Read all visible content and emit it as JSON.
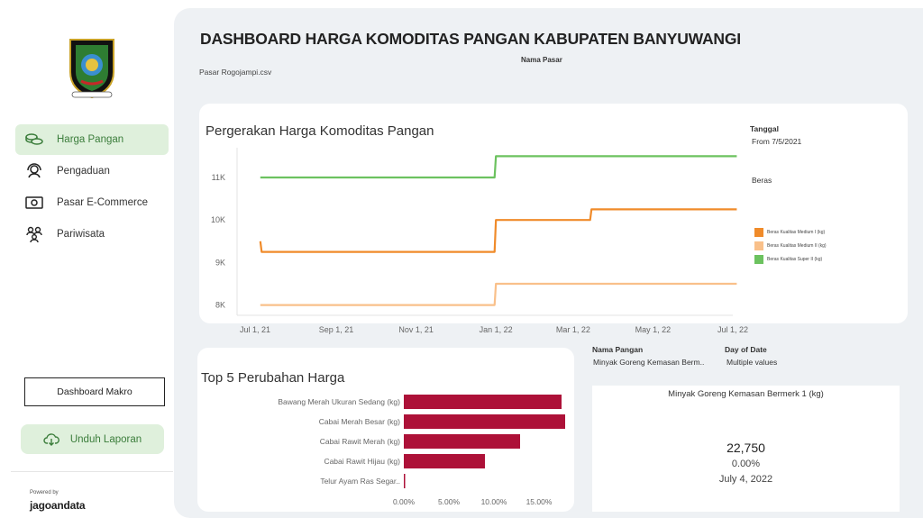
{
  "sidebar": {
    "logo_icon": "banyuwangi-crest-icon",
    "items": [
      {
        "label": "Harga Pangan",
        "icon": "coins-icon",
        "active": true
      },
      {
        "label": "Pengaduan",
        "icon": "support-agent-icon",
        "active": false
      },
      {
        "label": "Pasar E-Commerce",
        "icon": "cash-icon",
        "active": false
      },
      {
        "label": "Pariwisata",
        "icon": "people-group-icon",
        "active": false
      }
    ],
    "makro_label": "Dashboard Makro",
    "unduh_label": "Unduh Laporan",
    "powered_by": "Powered by",
    "brand": "jagoandata"
  },
  "header": {
    "title": "DASHBOARD HARGA KOMODITAS PANGAN KABUPATEN BANYUWANGI",
    "nama_pasar_label": "Nama Pasar",
    "pasar_value": "Pasar Rogojampi.csv"
  },
  "line_panel": {
    "title": "Pergerakan Harga Komoditas Pangan",
    "tanggal_label": "Tanggal",
    "tanggal_value": "From 7/5/2021",
    "commodity_filter": "Beras"
  },
  "bar_panel": {
    "title": "Top 5 Perubahan Harga"
  },
  "filters": {
    "nama_pangan_label": "Nama Pangan",
    "nama_pangan_value": "Minyak Goreng Kemasan Berm..",
    "day_label": "Day of Date",
    "day_value": "Multiple values"
  },
  "kpi": {
    "title": "Minyak Goreng Kemasan Bermerk 1 (kg)",
    "value": "22,750",
    "change": "0.00%",
    "date": "July 4, 2022"
  },
  "colors": {
    "green": "#6cc25f",
    "orange": "#f08b2a",
    "light_orange": "#f9c08a",
    "bar": "#ad1138",
    "nav_active_bg": "#dff0dc"
  },
  "chart_data": [
    {
      "type": "line",
      "title": "Pergerakan Harga Komoditas Pangan",
      "x_ticks": [
        "Jul 1, 21",
        "Sep 1, 21",
        "Nov 1, 21",
        "Jan 1, 22",
        "Mar 1, 22",
        "May 1, 22",
        "Jul 1, 22"
      ],
      "y_ticks": [
        "8K",
        "9K",
        "10K",
        "11K"
      ],
      "ylim": [
        7800,
        11700
      ],
      "xlim": [
        "2021-07-01",
        "2022-07-01"
      ],
      "series": [
        {
          "name": "Beras Kualitas Medium I (kg)",
          "color": "#f08b2a",
          "points": [
            [
              "2021-07-05",
              9500
            ],
            [
              "2021-07-06",
              9250
            ],
            [
              "2021-12-31",
              9250
            ],
            [
              "2022-01-01",
              10000
            ],
            [
              "2022-03-14",
              10000
            ],
            [
              "2022-03-15",
              10250
            ],
            [
              "2022-07-04",
              10250
            ]
          ]
        },
        {
          "name": "Beras Kualitas Medium II (kg)",
          "color": "#f9c08a",
          "points": [
            [
              "2021-07-05",
              8000
            ],
            [
              "2021-12-31",
              8000
            ],
            [
              "2022-01-01",
              8500
            ],
            [
              "2022-07-04",
              8500
            ]
          ]
        },
        {
          "name": "Beras Kualitas Super II (kg)",
          "color": "#6cc25f",
          "points": [
            [
              "2021-07-05",
              11000
            ],
            [
              "2021-12-31",
              11000
            ],
            [
              "2022-01-01",
              11500
            ],
            [
              "2022-07-04",
              11500
            ]
          ]
        }
      ]
    },
    {
      "type": "bar",
      "orientation": "horizontal",
      "title": "Top 5 Perubahan Harga",
      "categories": [
        "Bawang Merah Ukuran Sedang (kg)",
        "Cabai Merah Besar (kg)",
        "Cabai Rawit Merah (kg)",
        "Cabai Rawit Hijau (kg)",
        "Telur Ayam Ras Segar.."
      ],
      "values": [
        17.5,
        17.9,
        12.9,
        9.0,
        0.1
      ],
      "x_ticks": [
        "0.00%",
        "5.00%",
        "10.00%",
        "15.00%"
      ],
      "xlim": [
        0,
        18
      ]
    }
  ]
}
